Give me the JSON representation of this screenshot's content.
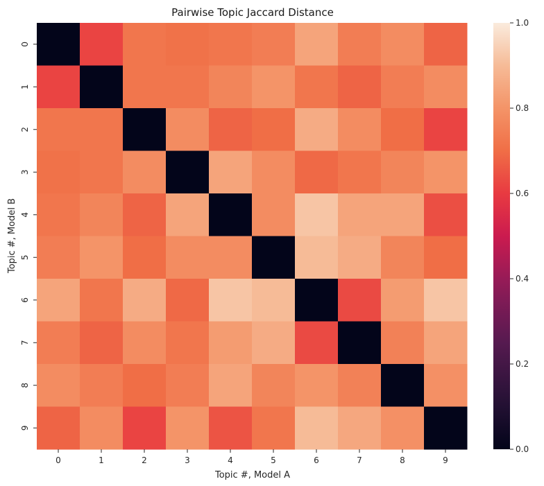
{
  "chart_data": {
    "type": "heatmap",
    "title": "Pairwise Topic Jaccard Distance",
    "xlabel": "Topic #, Model A",
    "ylabel": "Topic #, Model B",
    "x_categories": [
      "0",
      "1",
      "2",
      "3",
      "4",
      "5",
      "6",
      "7",
      "8",
      "9"
    ],
    "y_categories": [
      "0",
      "1",
      "2",
      "3",
      "4",
      "5",
      "6",
      "7",
      "8",
      "9"
    ],
    "values": [
      [
        0.0,
        0.62,
        0.72,
        0.71,
        0.72,
        0.74,
        0.84,
        0.74,
        0.78,
        0.68
      ],
      [
        0.62,
        0.0,
        0.72,
        0.72,
        0.76,
        0.8,
        0.72,
        0.68,
        0.74,
        0.78
      ],
      [
        0.72,
        0.72,
        0.0,
        0.78,
        0.68,
        0.7,
        0.86,
        0.78,
        0.7,
        0.62
      ],
      [
        0.71,
        0.72,
        0.78,
        0.0,
        0.84,
        0.78,
        0.69,
        0.72,
        0.76,
        0.8
      ],
      [
        0.72,
        0.76,
        0.68,
        0.84,
        0.0,
        0.78,
        0.92,
        0.84,
        0.84,
        0.64
      ],
      [
        0.74,
        0.8,
        0.7,
        0.78,
        0.78,
        0.0,
        0.9,
        0.86,
        0.76,
        0.7
      ],
      [
        0.84,
        0.72,
        0.86,
        0.69,
        0.92,
        0.9,
        0.0,
        0.63,
        0.82,
        0.92
      ],
      [
        0.74,
        0.68,
        0.78,
        0.72,
        0.82,
        0.86,
        0.63,
        0.0,
        0.75,
        0.84
      ],
      [
        0.78,
        0.74,
        0.7,
        0.74,
        0.84,
        0.76,
        0.8,
        0.75,
        0.0,
        0.79
      ],
      [
        0.68,
        0.78,
        0.62,
        0.8,
        0.65,
        0.72,
        0.9,
        0.85,
        0.79,
        0.0
      ]
    ],
    "colormap": "rocket",
    "colorbar": {
      "range": [
        0.0,
        1.0
      ],
      "ticks": [
        "0.0",
        "0.2",
        "0.4",
        "0.6",
        "0.8",
        "1.0"
      ]
    },
    "grid": false
  }
}
